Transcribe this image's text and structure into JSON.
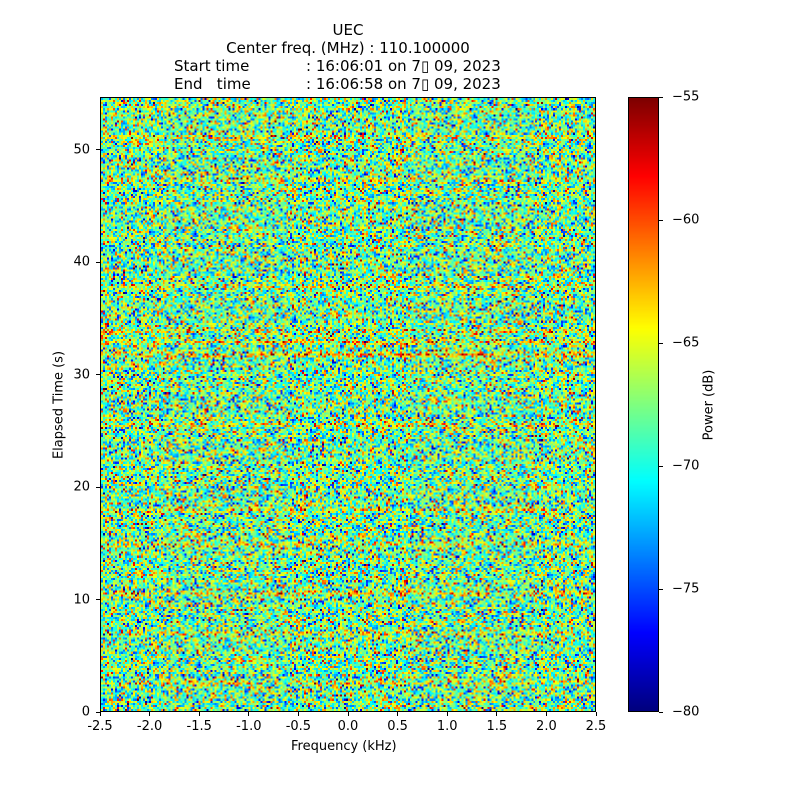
{
  "chart_data": {
    "type": "heatmap",
    "title_lines": [
      "UEC",
      "Center freq. (MHz) : 110.100000"
    ],
    "start_label": "Start time",
    "start_value": ": 16:06:01 on 7▯ 09, 2023",
    "end_label": "End   time",
    "end_value": ": 16:06:58 on 7▯ 09, 2023",
    "xlabel": "Frequency (kHz)",
    "ylabel": "Elapsed Time (s)",
    "xlim": [
      -2.5,
      2.5
    ],
    "ylim": [
      0,
      54.7
    ],
    "xticks": [
      -2.5,
      -2.0,
      -1.5,
      -1.0,
      -0.5,
      0.0,
      0.5,
      1.0,
      1.5,
      2.0,
      2.5
    ],
    "xtick_labels": [
      "-2.5",
      "-2.0",
      "-1.5",
      "-1.0",
      "-0.5",
      "0.0",
      "0.5",
      "1.0",
      "1.5",
      "2.0",
      "2.5"
    ],
    "yticks": [
      0,
      10,
      20,
      30,
      40,
      50
    ],
    "ytick_labels": [
      "0",
      "10",
      "20",
      "30",
      "40",
      "50"
    ],
    "colormap": "jet",
    "colorbar": {
      "label": "Power (dB)",
      "range": [
        -80,
        -55
      ],
      "ticks": [
        -55,
        -60,
        -65,
        -70,
        -75,
        -80
      ],
      "tick_labels": [
        "−55",
        "−60",
        "−65",
        "−70",
        "−75",
        "−80"
      ]
    },
    "background_level_db": -68,
    "horizontal_bands": [
      {
        "time_s": 2.6,
        "boost_db": 4
      },
      {
        "time_s": 7.0,
        "boost_db": 4
      },
      {
        "time_s": 10.6,
        "boost_db": 5
      },
      {
        "time_s": 15.0,
        "boost_db": 4
      },
      {
        "time_s": 18.0,
        "boost_db": 4
      },
      {
        "time_s": 25.6,
        "boost_db": 5
      },
      {
        "time_s": 31.9,
        "boost_db": 9
      },
      {
        "time_s": 33.0,
        "boost_db": 6
      },
      {
        "time_s": 34.0,
        "boost_db": 5
      },
      {
        "time_s": 38.0,
        "boost_db": 4
      },
      {
        "time_s": 47.5,
        "boost_db": 4
      },
      {
        "time_s": 51.3,
        "boost_db": 5
      }
    ]
  }
}
